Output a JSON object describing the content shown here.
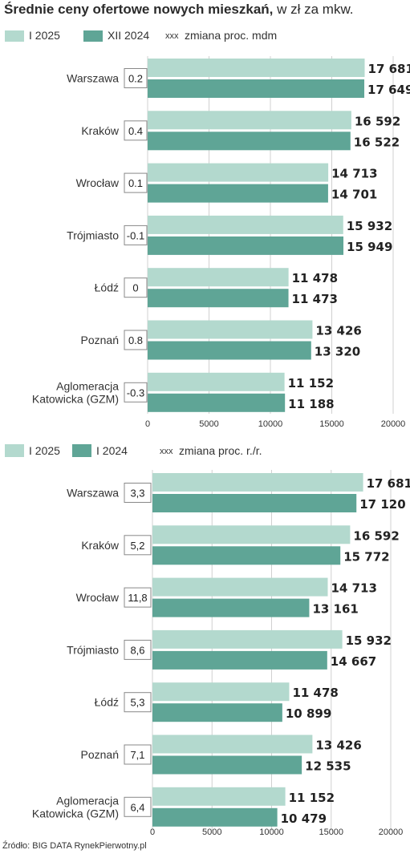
{
  "title": {
    "bold": "Średnie ceny ofertowe nowych mieszkań,",
    "rest": " w zł za mkw."
  },
  "source": "Źródło: BIG DATA RynekPierwotny.pl",
  "colors": {
    "light": "#b3d9ce",
    "dark": "#5fa596",
    "grid": "#d0d0d0",
    "legend_bg": "#ffffff"
  },
  "chart_data": [
    {
      "type": "bar",
      "orientation": "horizontal",
      "categories": [
        "Warszawa",
        "Kraków",
        "Wrocław",
        "Trójmiasto",
        "Łódź",
        "Poznań",
        "Aglomeracja Katowicka (GZM)"
      ],
      "series": [
        {
          "name": "I 2025",
          "values": [
            17681,
            16592,
            14713,
            15932,
            11478,
            13426,
            11152
          ],
          "labels": [
            "17 681",
            "16 592",
            "14 713",
            "15 932",
            "11 478",
            "13 426",
            "11 152"
          ]
        },
        {
          "name": "XII 2024",
          "values": [
            17649,
            16522,
            14701,
            15949,
            11473,
            13320,
            11188
          ],
          "labels": [
            "17 649",
            "16 522",
            "14 701",
            "15 949",
            "11 473",
            "13 320",
            "11 188"
          ]
        }
      ],
      "change": {
        "legend_symbol": "xxx",
        "legend_label": "zmiana proc. mdm",
        "values": [
          "0.2",
          "0.4",
          "0.1",
          "-0.1",
          "0",
          "0.8",
          "-0.3"
        ]
      },
      "xlim": [
        0,
        20000
      ],
      "xticks": [
        "0",
        "5000",
        "10000",
        "15000",
        "20000"
      ],
      "grid": true,
      "legend_position": "top"
    },
    {
      "type": "bar",
      "orientation": "horizontal",
      "categories": [
        "Warszawa",
        "Kraków",
        "Wrocław",
        "Trójmiasto",
        "Łódź",
        "Poznań",
        "Aglomeracja Katowicka (GZM)"
      ],
      "series": [
        {
          "name": "I 2025",
          "values": [
            17681,
            16592,
            14713,
            15932,
            11478,
            13426,
            11152
          ],
          "labels": [
            "17 681",
            "16 592",
            "14 713",
            "15 932",
            "11 478",
            "13 426",
            "11 152"
          ]
        },
        {
          "name": "I 2024",
          "values": [
            17120,
            15772,
            13161,
            14667,
            10899,
            12535,
            10479
          ],
          "labels": [
            "17 120",
            "15 772",
            "13 161",
            "14 667",
            "10 899",
            "12 535",
            "10 479"
          ]
        }
      ],
      "change": {
        "legend_symbol": "xxx",
        "legend_label": "zmiana proc. r./r.",
        "values": [
          "3,3",
          "5,2",
          "11,8",
          "8,6",
          "5,3",
          "7,1",
          "6,4"
        ]
      },
      "xlim": [
        0,
        20000
      ],
      "xticks": [
        "0",
        "5000",
        "10000",
        "15000",
        "20000"
      ],
      "grid": true,
      "legend_position": "top"
    }
  ]
}
